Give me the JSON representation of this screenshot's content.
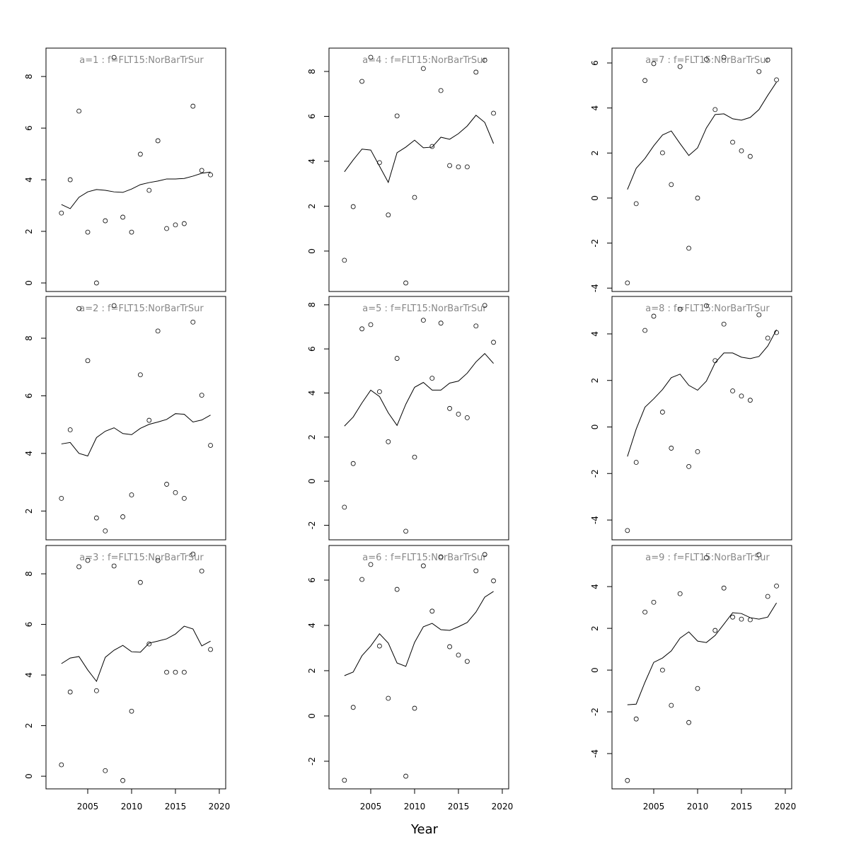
{
  "xlabel": "Year",
  "chart_data": [
    {
      "type": "scatter",
      "title": "a=1  :  f=FLT15:NorBarTrSur",
      "x": [
        2002,
        2003,
        2004,
        2005,
        2006,
        2007,
        2008,
        2009,
        2010,
        2011,
        2012,
        2013,
        2014,
        2015,
        2016,
        2017,
        2018,
        2019
      ],
      "values": [
        2.71,
        4.0,
        6.66,
        1.97,
        0,
        2.41,
        8.74,
        2.55,
        1.97,
        4.99,
        3.59,
        5.51,
        2.11,
        2.25,
        2.3,
        6.85,
        4.36,
        4.19
      ],
      "line_values": [
        3.04,
        2.88,
        3.32,
        3.53,
        3.62,
        3.59,
        3.53,
        3.51,
        3.64,
        3.81,
        3.89,
        3.95,
        4.03,
        4.03,
        4.05,
        4.14,
        4.25,
        4.3
      ],
      "xlim": [
        2000.24,
        2020.73
      ],
      "ylim": [
        -0.33,
        9.1
      ],
      "yticks": [
        0,
        2,
        4,
        6,
        8
      ]
    },
    {
      "type": "scatter",
      "title": "a=2  :  f=FLT15:NorBarTrSur",
      "x": [
        2002,
        2003,
        2004,
        2005,
        2006,
        2007,
        2008,
        2009,
        2010,
        2011,
        2012,
        2013,
        2014,
        2015,
        2016,
        2017,
        2018,
        2019
      ],
      "values": [
        2.44,
        4.82,
        9.03,
        7.22,
        1.76,
        1.31,
        9.13,
        1.8,
        2.56,
        6.73,
        5.15,
        8.25,
        2.93,
        2.64,
        2.44,
        8.56,
        6.02,
        4.28
      ],
      "line_values": [
        4.33,
        4.38,
        4.0,
        3.91,
        4.55,
        4.77,
        4.89,
        4.69,
        4.65,
        4.87,
        5.01,
        5.09,
        5.18,
        5.38,
        5.36,
        5.09,
        5.16,
        5.33
      ],
      "xlim": [
        2000.24,
        2020.73
      ],
      "ylim": [
        1.0,
        9.45
      ],
      "yticks": [
        2,
        4,
        6,
        8
      ]
    },
    {
      "type": "scatter",
      "title": "a=3  :  f=FLT15:NorBarTrSur",
      "x": [
        2002,
        2003,
        2004,
        2005,
        2006,
        2007,
        2008,
        2009,
        2010,
        2011,
        2012,
        2013,
        2014,
        2015,
        2016,
        2017,
        2018,
        2019
      ],
      "values": [
        0.45,
        3.33,
        8.28,
        8.53,
        3.38,
        0.22,
        8.31,
        -0.17,
        2.57,
        7.66,
        5.23,
        8.53,
        4.11,
        4.11,
        4.11,
        8.78,
        8.11,
        5.01
      ],
      "line_values": [
        4.45,
        4.67,
        4.73,
        4.2,
        3.75,
        4.7,
        4.98,
        5.17,
        4.92,
        4.9,
        5.26,
        5.34,
        5.43,
        5.62,
        5.93,
        5.82,
        5.15,
        5.34
      ],
      "xlim": [
        2000.24,
        2020.73
      ],
      "ylim": [
        -0.5,
        9.12
      ],
      "yticks": [
        0,
        2,
        4,
        6,
        8
      ],
      "xticks": [
        2005,
        2010,
        2015,
        2020
      ]
    },
    {
      "type": "scatter",
      "title": "a=4  :  f=FLT15:NorBarTrSur",
      "x": [
        2002,
        2003,
        2004,
        2005,
        2006,
        2007,
        2008,
        2009,
        2010,
        2011,
        2012,
        2013,
        2014,
        2015,
        2016,
        2017,
        2018,
        2019
      ],
      "values": [
        -0.41,
        1.98,
        7.56,
        8.63,
        3.94,
        1.61,
        6.02,
        -1.42,
        2.39,
        8.13,
        4.66,
        7.15,
        3.81,
        3.75,
        3.75,
        7.97,
        8.5,
        6.14
      ],
      "line_values": [
        3.53,
        4.06,
        4.54,
        4.5,
        3.78,
        3.06,
        4.38,
        4.63,
        4.94,
        4.6,
        4.63,
        5.07,
        4.98,
        5.23,
        5.57,
        6.05,
        5.73,
        4.79
      ],
      "xlim": [
        2000.24,
        2020.73
      ],
      "ylim": [
        -1.8,
        9.04
      ],
      "yticks": [
        0,
        2,
        4,
        6,
        8
      ]
    },
    {
      "type": "scatter",
      "title": "a=5  :  f=FLT15:NorBarTrSur",
      "x": [
        2002,
        2003,
        2004,
        2005,
        2006,
        2007,
        2008,
        2009,
        2010,
        2011,
        2012,
        2013,
        2014,
        2015,
        2016,
        2017,
        2018,
        2019
      ],
      "values": [
        -1.18,
        0.8,
        6.91,
        7.1,
        4.06,
        1.79,
        5.57,
        -2.27,
        1.09,
        7.3,
        4.67,
        7.17,
        3.3,
        3.04,
        2.88,
        7.04,
        7.97,
        6.3
      ],
      "line_values": [
        2.5,
        2.91,
        3.55,
        4.13,
        3.84,
        3.1,
        2.53,
        3.49,
        4.26,
        4.48,
        4.13,
        4.13,
        4.45,
        4.54,
        4.9,
        5.41,
        5.79,
        5.34
      ],
      "xlim": [
        2000.24,
        2020.73
      ],
      "ylim": [
        -2.66,
        8.38
      ],
      "yticks": [
        -2,
        0,
        2,
        4,
        6,
        8
      ]
    },
    {
      "type": "scatter",
      "title": "a=6  :  f=FLT15:NorBarTrSur",
      "x": [
        2002,
        2003,
        2004,
        2005,
        2006,
        2007,
        2008,
        2009,
        2010,
        2011,
        2012,
        2013,
        2014,
        2015,
        2016,
        2017,
        2018,
        2019
      ],
      "values": [
        -2.84,
        0.38,
        6.03,
        6.69,
        3.09,
        0.78,
        5.59,
        -2.66,
        0.34,
        6.63,
        4.63,
        7.03,
        3.06,
        2.69,
        2.41,
        6.41,
        7.13,
        5.97
      ],
      "line_values": [
        1.78,
        1.94,
        2.66,
        3.09,
        3.63,
        3.22,
        2.34,
        2.19,
        3.25,
        3.94,
        4.09,
        3.81,
        3.78,
        3.94,
        4.13,
        4.59,
        5.25,
        5.5
      ],
      "xlim": [
        2000.24,
        2020.73
      ],
      "ylim": [
        -3.22,
        7.53
      ],
      "yticks": [
        -2,
        0,
        2,
        4,
        6
      ],
      "xticks": [
        2005,
        2010,
        2015,
        2020
      ]
    },
    {
      "type": "scatter",
      "title": "a=7  :  f=FLT15:NorBarTrSur",
      "x": [
        2002,
        2003,
        2004,
        2005,
        2006,
        2007,
        2008,
        2009,
        2010,
        2011,
        2012,
        2013,
        2014,
        2015,
        2016,
        2017,
        2018,
        2019
      ],
      "values": [
        -3.77,
        -0.25,
        5.22,
        5.97,
        2.01,
        0.6,
        5.84,
        -2.23,
        0,
        6.16,
        3.93,
        6.25,
        2.48,
        2.1,
        1.85,
        5.62,
        6.13,
        5.25
      ],
      "line_values": [
        0.38,
        1.32,
        1.76,
        2.32,
        2.8,
        2.98,
        2.42,
        1.89,
        2.23,
        3.11,
        3.71,
        3.74,
        3.52,
        3.46,
        3.58,
        3.93,
        4.56,
        5.15
      ],
      "xlim": [
        2000.24,
        2020.73
      ],
      "ylim": [
        -4.15,
        6.66
      ],
      "yticks": [
        -4,
        -2,
        0,
        2,
        4,
        6
      ]
    },
    {
      "type": "scatter",
      "title": "a=8  :  f=FLT15:NorBarTrSur",
      "x": [
        2002,
        2003,
        2004,
        2005,
        2006,
        2007,
        2008,
        2009,
        2010,
        2011,
        2012,
        2013,
        2014,
        2015,
        2016,
        2017,
        2018,
        2019
      ],
      "values": [
        -4.45,
        -1.52,
        4.15,
        4.76,
        0.64,
        -0.91,
        5.06,
        -1.7,
        -1.06,
        5.21,
        2.85,
        4.42,
        1.55,
        1.33,
        1.15,
        4.82,
        3.82,
        4.06
      ],
      "line_values": [
        -1.27,
        -0.09,
        0.85,
        1.21,
        1.61,
        2.12,
        2.27,
        1.79,
        1.58,
        1.97,
        2.76,
        3.18,
        3.18,
        3.0,
        2.94,
        3.03,
        3.48,
        4.18
      ],
      "xlim": [
        2000.24,
        2020.73
      ],
      "ylim": [
        -4.85,
        5.61
      ],
      "yticks": [
        -4,
        -2,
        0,
        2,
        4
      ]
    },
    {
      "type": "scatter",
      "title": "a=9  :  f=FLT15:NorBarTrSur",
      "x": [
        2002,
        2003,
        2004,
        2005,
        2006,
        2007,
        2008,
        2009,
        2010,
        2011,
        2012,
        2013,
        2014,
        2015,
        2016,
        2017,
        2018,
        2019
      ],
      "values": [
        -5.29,
        -2.34,
        2.78,
        3.25,
        0,
        -1.69,
        3.66,
        -2.51,
        -0.88,
        5.39,
        1.9,
        3.93,
        2.54,
        2.44,
        2.41,
        5.53,
        3.53,
        4.03
      ],
      "line_values": [
        -1.66,
        -1.63,
        -0.58,
        0.37,
        0.58,
        0.92,
        1.53,
        1.83,
        1.39,
        1.32,
        1.66,
        2.2,
        2.75,
        2.71,
        2.51,
        2.44,
        2.54,
        3.22
      ],
      "xlim": [
        2000.24,
        2020.73
      ],
      "ylim": [
        -5.69,
        5.97
      ],
      "yticks": [
        -4,
        -2,
        0,
        2,
        4
      ],
      "xticks": [
        2005,
        2010,
        2015,
        2020
      ]
    }
  ]
}
